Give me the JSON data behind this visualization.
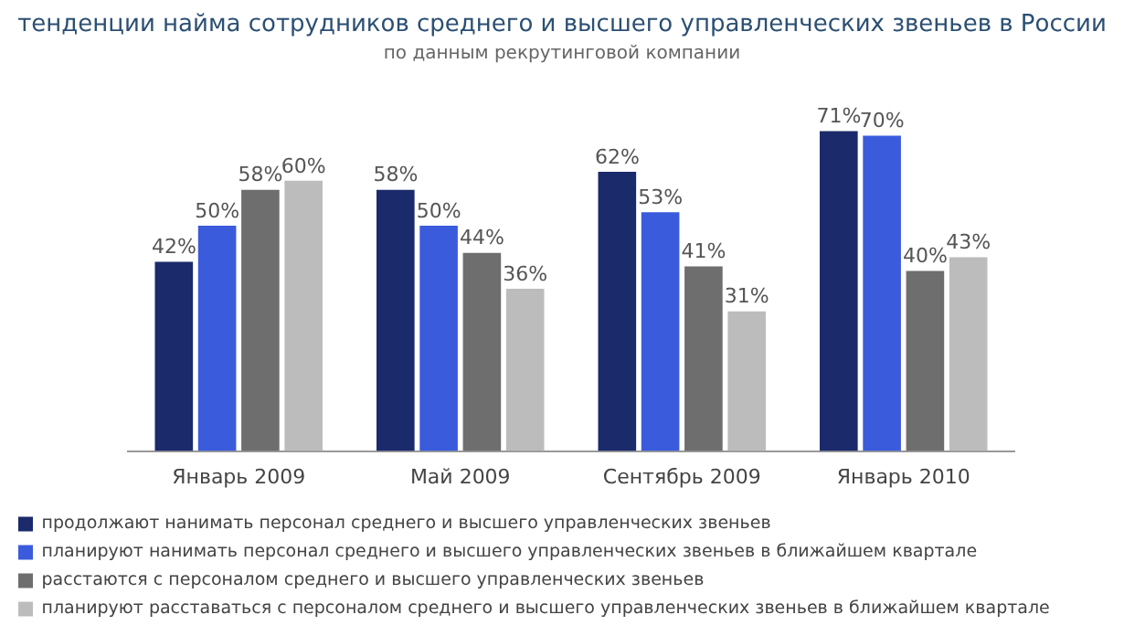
{
  "chart_data": {
    "type": "bar",
    "title": "тенденции найма сотрудников среднего и высшего управленческих звеньев в России",
    "subtitle": "по данным рекрутинговой компании",
    "categories": [
      "Январь 2009",
      "Май 2009",
      "Сентябрь 2009",
      "Январь 2010"
    ],
    "series": [
      {
        "name": "продолжают нанимать персонал среднего и высшего управленческих звеньев",
        "color": "#1b2a6b",
        "values": [
          42,
          58,
          62,
          71
        ],
        "value_labels": [
          "42%",
          "58%",
          "62%",
          "71%"
        ]
      },
      {
        "name": "планируют нанимать персонал среднего и высшего управленческих звеньев в ближайшем квартале",
        "color": "#3a5bdc",
        "values": [
          50,
          50,
          53,
          70
        ],
        "value_labels": [
          "50%",
          "50%",
          "53%",
          "70%"
        ]
      },
      {
        "name": "расстаются с персоналом среднего и высшего управленческих звеньев",
        "color": "#6e6e6e",
        "values": [
          58,
          44,
          41,
          40
        ],
        "value_labels": [
          "58%",
          "44%",
          "41%",
          "40%"
        ]
      },
      {
        "name": "планируют расставаться с персоналом среднего и высшего управленческих звеньев в ближайшем квартале",
        "color": "#bcbcbc",
        "values": [
          60,
          36,
          31,
          43
        ],
        "value_labels": [
          "60%",
          "36%",
          "31%",
          "43%"
        ]
      }
    ],
    "legend": "bottom"
  }
}
